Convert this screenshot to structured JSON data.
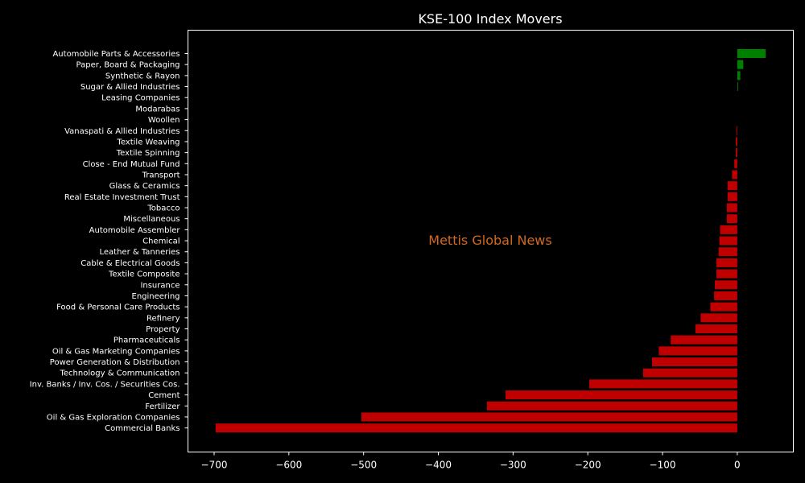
{
  "chart_data": {
    "type": "bar",
    "orientation": "horizontal",
    "title": "KSE-100 Index Movers",
    "xlabel": "",
    "ylabel": "",
    "xlim": [
      -735,
      75
    ],
    "x_ticks": [
      -700,
      -600,
      -500,
      -400,
      -300,
      -200,
      -100,
      0
    ],
    "x_tick_labels": [
      "−700",
      "−600",
      "−500",
      "−400",
      "−300",
      "−200",
      "−100",
      "0"
    ],
    "grid": false,
    "legend": "none",
    "colors": {
      "positive": "#008000",
      "negative": "#c00000",
      "background": "#000000",
      "foreground": "#ffffff",
      "watermark": "#d2691e"
    },
    "categories": [
      "Automobile Parts & Accessories",
      "Paper, Board & Packaging",
      "Synthetic & Rayon",
      "Sugar & Allied Industries",
      "Leasing Companies",
      "Modarabas",
      "Woollen",
      "Vanaspati & Allied Industries",
      "Textile Weaving",
      "Textile Spinning",
      "Close - End Mutual Fund",
      "Transport",
      "Glass & Ceramics",
      "Real Estate Investment Trust",
      "Tobacco",
      "Miscellaneous",
      "Automobile Assembler",
      "Chemical",
      "Leather & Tanneries",
      "Cable & Electrical Goods",
      "Textile Composite",
      "Insurance",
      "Engineering",
      "Food & Personal Care Products",
      "Refinery",
      "Property",
      "Pharmaceuticals",
      "Oil & Gas Marketing Companies",
      "Power Generation & Distribution",
      "Technology & Communication",
      "Inv. Banks / Inv. Cos. / Securities Cos.",
      "Cement",
      "Fertilizer",
      "Oil & Gas Exploration Companies",
      "Commercial Banks"
    ],
    "values": [
      38,
      8,
      4,
      1,
      0,
      0,
      0,
      -1,
      -2,
      -2,
      -4,
      -7,
      -13,
      -13,
      -14,
      -14,
      -23,
      -24,
      -25,
      -28,
      -28,
      -30,
      -31,
      -36,
      -49,
      -56,
      -89,
      -105,
      -114,
      -126,
      -198,
      -310,
      -335,
      -503,
      -698
    ]
  },
  "watermark": "Mettis Global News"
}
